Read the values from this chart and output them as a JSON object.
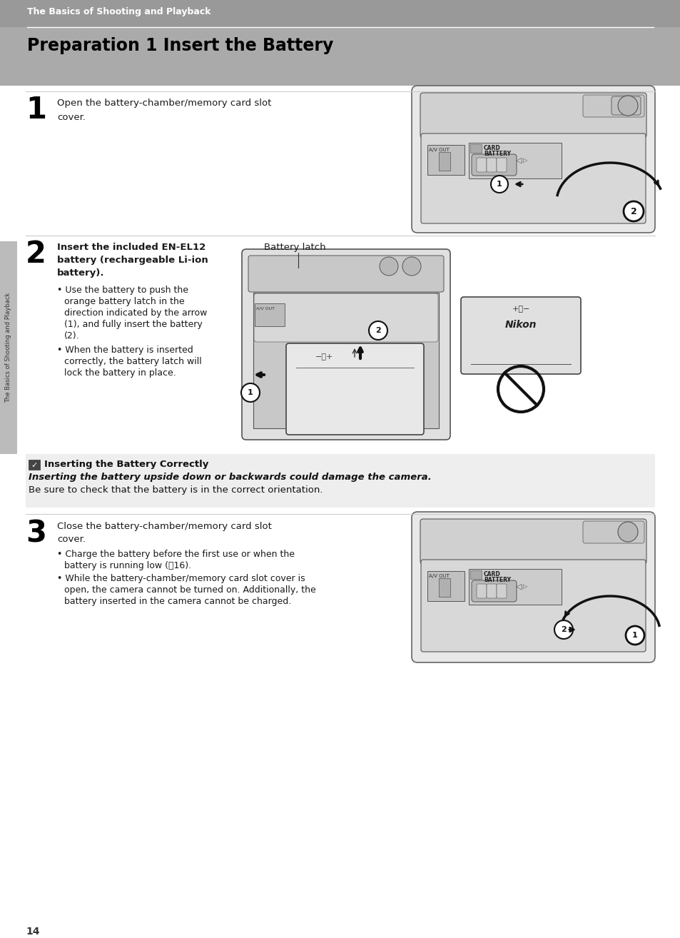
{
  "page_bg": "#ffffff",
  "header_bg": "#999999",
  "header_text": "The Basics of Shooting and Playback",
  "header_text_color": "#ffffff",
  "title_text": "Preparation 1 Insert the Battery",
  "title_text_color": "#000000",
  "title_bg": "#aaaaaa",
  "sidebar_bg": "#bbbbbb",
  "sidebar_text": "The Basics of Shooting and Playback",
  "page_number": "14",
  "step1_number": "1",
  "step1_text_line1": "Open the battery-chamber/memory card slot",
  "step1_text_line2": "cover.",
  "step2_number": "2",
  "step2_text_line1": "Insert the included EN-EL12",
  "step2_text_line2": "battery (rechargeable Li-ion",
  "step2_text_line3": "battery).",
  "step2_bullet1_line1": "Use the battery to push the",
  "step2_bullet1_line2": "orange battery latch in the",
  "step2_bullet1_line3": "direction indicated by the arrow",
  "step2_bullet1_line4": "(1), and fully insert the battery",
  "step2_bullet1_line5": "(2).",
  "step2_bullet2_line1": "When the battery is inserted",
  "step2_bullet2_line2": "correctly, the battery latch will",
  "step2_bullet2_line3": "lock the battery in place.",
  "battery_latch_label": "Battery latch",
  "note_title": "Inserting the Battery Correctly",
  "note_bold_text": "Inserting the battery upside down or backwards could damage the camera.",
  "note_normal_text": " Be sure to check that the battery is in the correct orientation.",
  "step3_number": "3",
  "step3_text_line1": "Close the battery-chamber/memory card slot",
  "step3_text_line2": "cover.",
  "step3_bullet1_line1": "Charge the battery before the first use or when the",
  "step3_bullet1_line2": "battery is running low (ᄑ16).",
  "step3_bullet2_line1": "While the battery-chamber/memory card slot cover is",
  "step3_bullet2_line2": "open, the camera cannot be turned on. Additionally, the",
  "step3_bullet2_line3": "battery inserted in the camera cannot be charged.",
  "text_color": "#1a1a1a",
  "divider_color": "#cccccc",
  "font_size_header": 9,
  "font_size_title": 17,
  "font_size_step_num": 30,
  "font_size_body": 9.5,
  "font_size_note": 9.5
}
